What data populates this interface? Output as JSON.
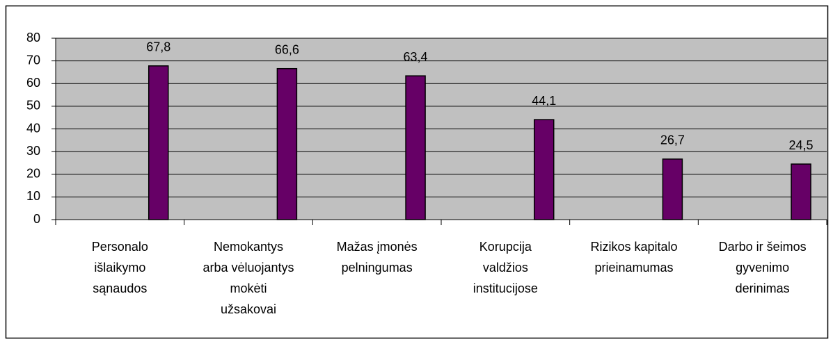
{
  "chart_data": {
    "type": "bar",
    "categories": [
      [
        "Personalo",
        "išlaikymo",
        "sąnaudos"
      ],
      [
        "Nemokantys",
        "arba vėluojantys",
        "mokėti",
        "užsakovai"
      ],
      [
        "Mažas įmonės",
        "pelningumas"
      ],
      [
        "Korupcija",
        "valdžios",
        "institucijose"
      ],
      [
        "Rizikos kapitalo",
        "prieinamumas"
      ],
      [
        "Darbo ir šeimos",
        "gyvenimo",
        "derinimas"
      ]
    ],
    "values": [
      67.8,
      66.6,
      63.4,
      44.1,
      26.7,
      24.5
    ],
    "value_labels": [
      "67,8",
      "66,6",
      "63,4",
      "44,1",
      "26,7",
      "24,5"
    ],
    "color": "#660066",
    "ylim": [
      0,
      80
    ],
    "yticks": [
      0,
      10,
      20,
      30,
      40,
      50,
      60,
      70,
      80
    ],
    "grid": true
  }
}
